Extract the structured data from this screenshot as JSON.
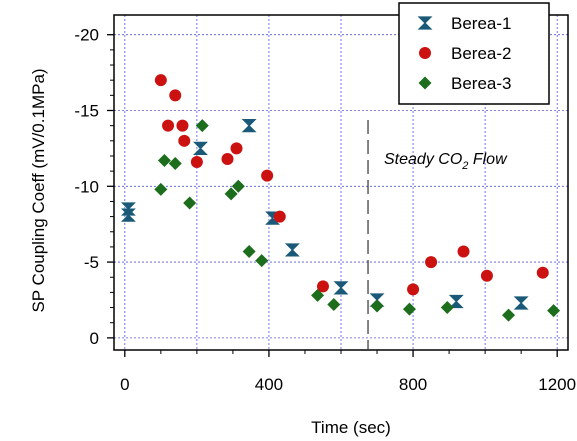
{
  "chart_data": {
    "type": "scatter",
    "xlabel": "Time (sec)",
    "ylabel": "SP Coupling Coeff (mV/0.1MPa)",
    "xlim": [
      -30,
      1230
    ],
    "ylim": [
      0.8,
      -21.3
    ],
    "x_ticks": [
      0,
      400,
      800,
      1200
    ],
    "y_ticks": [
      0,
      -5,
      -10,
      -15,
      -20
    ],
    "x_tick_labels": [
      "0",
      "400",
      "800",
      "1200"
    ],
    "y_tick_labels": [
      "0",
      "-5",
      "-10",
      "-15",
      "-20"
    ],
    "x_grid_lines": [
      0,
      200,
      400,
      600,
      800,
      1000,
      1200
    ],
    "y_grid_lines": [
      0,
      -5,
      -10,
      -15,
      -20
    ],
    "y_axis_reversed": true,
    "grid": true,
    "legend_position": "top-right",
    "series": [
      {
        "name": "Berea-1",
        "marker": "bowtie",
        "color": "#1a5a78",
        "points": [
          [
            10,
            -8.5
          ],
          [
            10,
            -8.1
          ],
          [
            210,
            -12.5
          ],
          [
            345,
            -14.0
          ],
          [
            410,
            -7.9
          ],
          [
            465,
            -5.8
          ],
          [
            600,
            -3.3
          ],
          [
            700,
            -2.5
          ],
          [
            920,
            -2.4
          ],
          [
            1100,
            -2.3
          ]
        ]
      },
      {
        "name": "Berea-2",
        "marker": "circle",
        "color": "#cc1111",
        "points": [
          [
            100,
            -17.0
          ],
          [
            140,
            -16.0
          ],
          [
            120,
            -14.0
          ],
          [
            160,
            -14.0
          ],
          [
            165,
            -13.0
          ],
          [
            200,
            -11.6
          ],
          [
            285,
            -11.8
          ],
          [
            310,
            -12.5
          ],
          [
            395,
            -10.7
          ],
          [
            430,
            -8.0
          ],
          [
            550,
            -3.4
          ],
          [
            800,
            -3.2
          ],
          [
            850,
            -5.0
          ],
          [
            940,
            -5.7
          ],
          [
            1005,
            -4.1
          ],
          [
            1160,
            -4.3
          ]
        ]
      },
      {
        "name": "Berea-3",
        "marker": "diamond",
        "color": "#1c6e1c",
        "points": [
          [
            110,
            -11.7
          ],
          [
            140,
            -11.5
          ],
          [
            215,
            -14.0
          ],
          [
            100,
            -9.8
          ],
          [
            180,
            -8.9
          ],
          [
            295,
            -9.5
          ],
          [
            315,
            -10.0
          ],
          [
            345,
            -5.7
          ],
          [
            380,
            -5.1
          ],
          [
            535,
            -2.8
          ],
          [
            580,
            -2.2
          ],
          [
            700,
            -2.1
          ],
          [
            790,
            -1.9
          ],
          [
            895,
            -2.0
          ],
          [
            1065,
            -1.5
          ],
          [
            1190,
            -1.8
          ]
        ]
      }
    ],
    "annotations": [
      {
        "type": "vline",
        "x": 675,
        "style": "dashed"
      },
      {
        "type": "text",
        "label_main": "Steady CO",
        "label_sub": "2",
        "label_tail": " Flow"
      }
    ]
  }
}
